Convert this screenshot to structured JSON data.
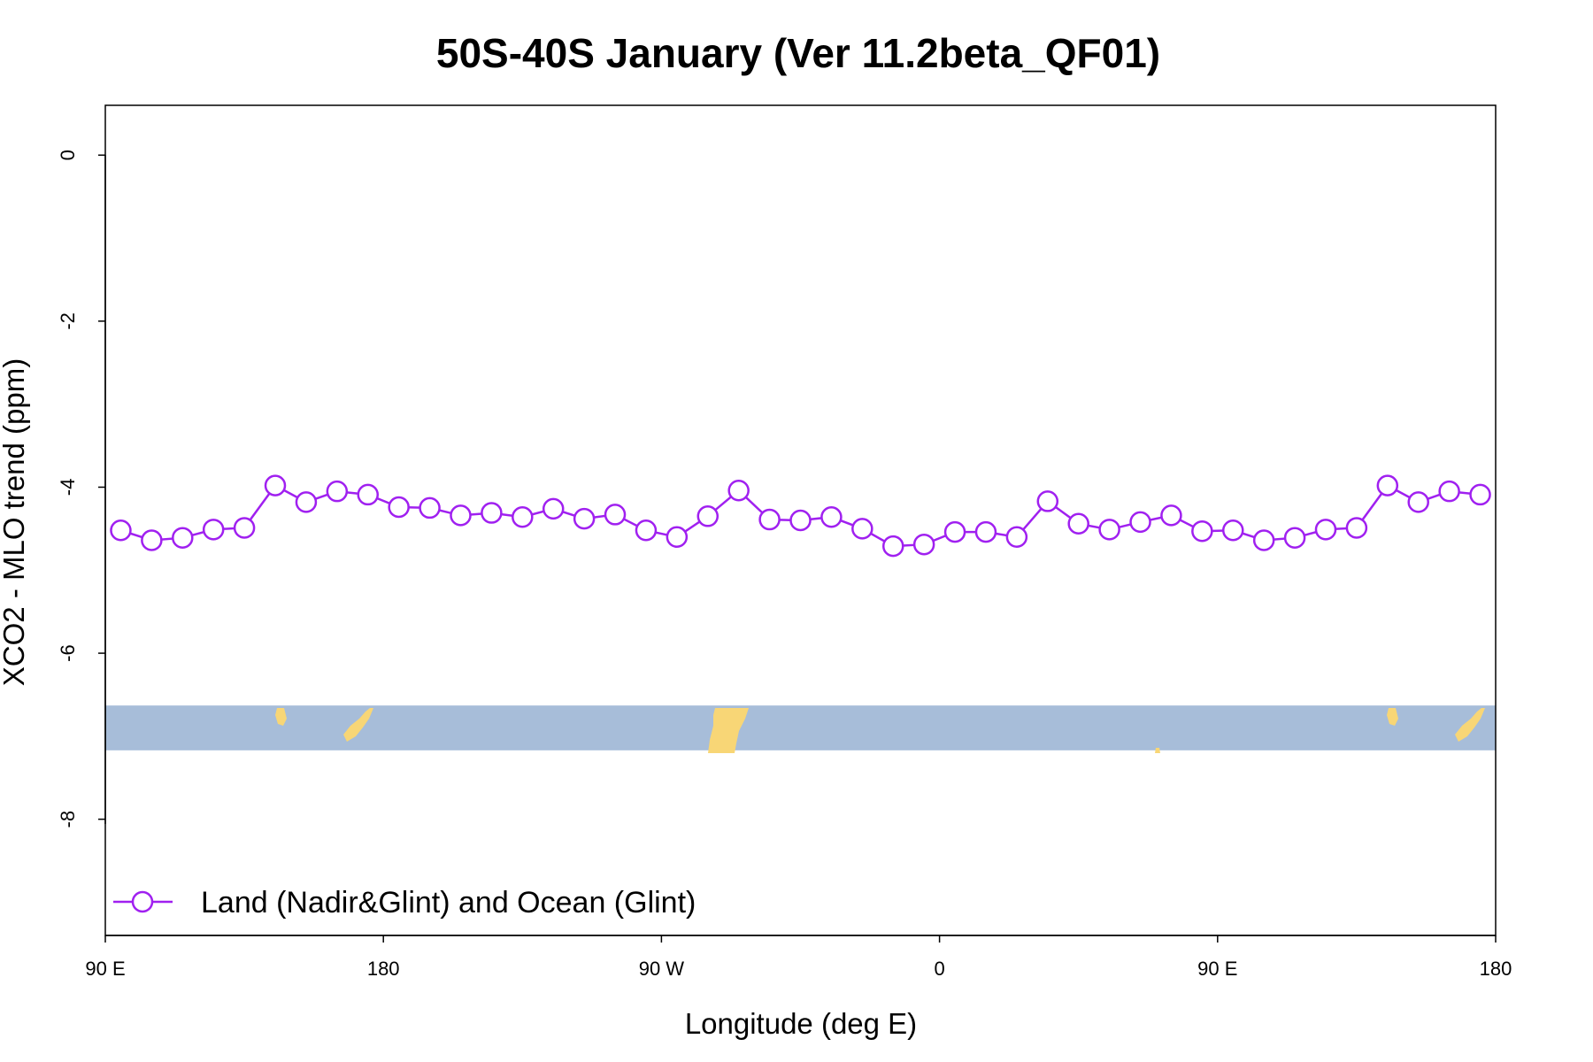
{
  "chart_data": {
    "type": "line",
    "title": "50S-40S January (Ver 11.2beta_QF01)",
    "xlabel": "Longitude (deg E)",
    "ylabel": "XCO2 - MLO trend (ppm)",
    "x_ticks": [
      "90 E",
      "180",
      "90 W",
      "0",
      "90 E",
      "180"
    ],
    "y_ticks": [
      "0",
      "-2",
      "-4",
      "-6",
      "-8"
    ],
    "xlim": [
      90,
      540
    ],
    "ylim": [
      -9.4,
      0.6
    ],
    "legend_position": "bottom-left",
    "series": [
      {
        "name": "Land (Nadir&Glint) and Ocean (Glint)",
        "color": "#a020f0",
        "marker": "open-circle",
        "x": [
          95,
          105,
          115,
          125,
          135,
          145,
          155,
          165,
          175,
          185,
          195,
          205,
          215,
          225,
          235,
          245,
          255,
          265,
          275,
          285,
          295,
          305,
          315,
          325,
          335,
          345,
          355,
          365,
          375,
          385,
          395,
          405,
          415,
          425,
          435,
          445,
          455,
          465,
          475,
          485,
          495,
          505,
          515,
          525,
          535
        ],
        "y": [
          -4.52,
          -4.64,
          -4.61,
          -4.51,
          -4.49,
          -3.98,
          -4.18,
          -4.05,
          -4.09,
          -4.24,
          -4.25,
          -4.34,
          -4.31,
          -4.36,
          -4.26,
          -4.38,
          -4.33,
          -4.52,
          -4.6,
          -4.35,
          -4.04,
          -4.39,
          -4.4,
          -4.36,
          -4.5,
          -4.71,
          -4.69,
          -4.54,
          -4.54,
          -4.6,
          -4.17,
          -4.44,
          -4.51,
          -4.42,
          -4.34,
          -4.53,
          -4.52,
          -4.64,
          -4.61,
          -4.51,
          -4.49,
          -3.98,
          -4.18,
          -4.05,
          -4.09
        ]
      }
    ],
    "land_mask_band": {
      "y_range": [
        -7.17,
        -6.63
      ],
      "ocean_color": "#a7bdd9",
      "land_color": "#f8d676"
    }
  }
}
